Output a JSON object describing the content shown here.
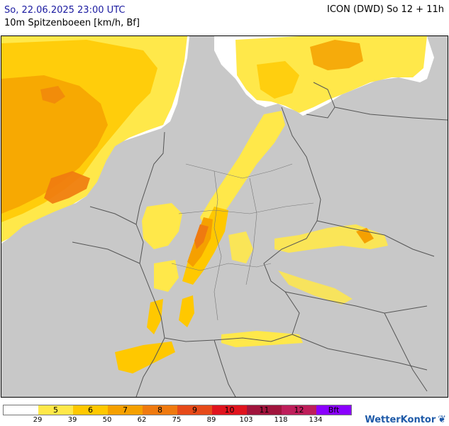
{
  "header": {
    "datetime": "So, 22.06.2025 23:00 UTC",
    "parameter": "10m Spitzenboeen [km/h, Bf]",
    "model": "ICON (DWD) So 12 + 11h"
  },
  "legend": {
    "colors": [
      "#ffffff",
      "#ffe84a",
      "#ffc800",
      "#f5a000",
      "#ef7a10",
      "#e64a19",
      "#e0141e",
      "#a0143c",
      "#be1e5a",
      "#8a00ff"
    ],
    "labels": [
      "",
      "5",
      "6",
      "7",
      "8",
      "9",
      "10",
      "11",
      "12",
      "Bft"
    ],
    "ticks": [
      "29",
      "39",
      "50",
      "62",
      "75",
      "89",
      "103",
      "118",
      "134"
    ]
  },
  "brand": {
    "name": "WetterKontor"
  },
  "map_colors": {
    "land": "#c8c8c8",
    "sea": "#ffffff",
    "borders": "#555555",
    "lvl5": "#ffe84a",
    "lvl6": "#ffc800",
    "lvl7": "#f5a000",
    "lvl8": "#ef7a10",
    "lvl9": "#e64a19"
  }
}
